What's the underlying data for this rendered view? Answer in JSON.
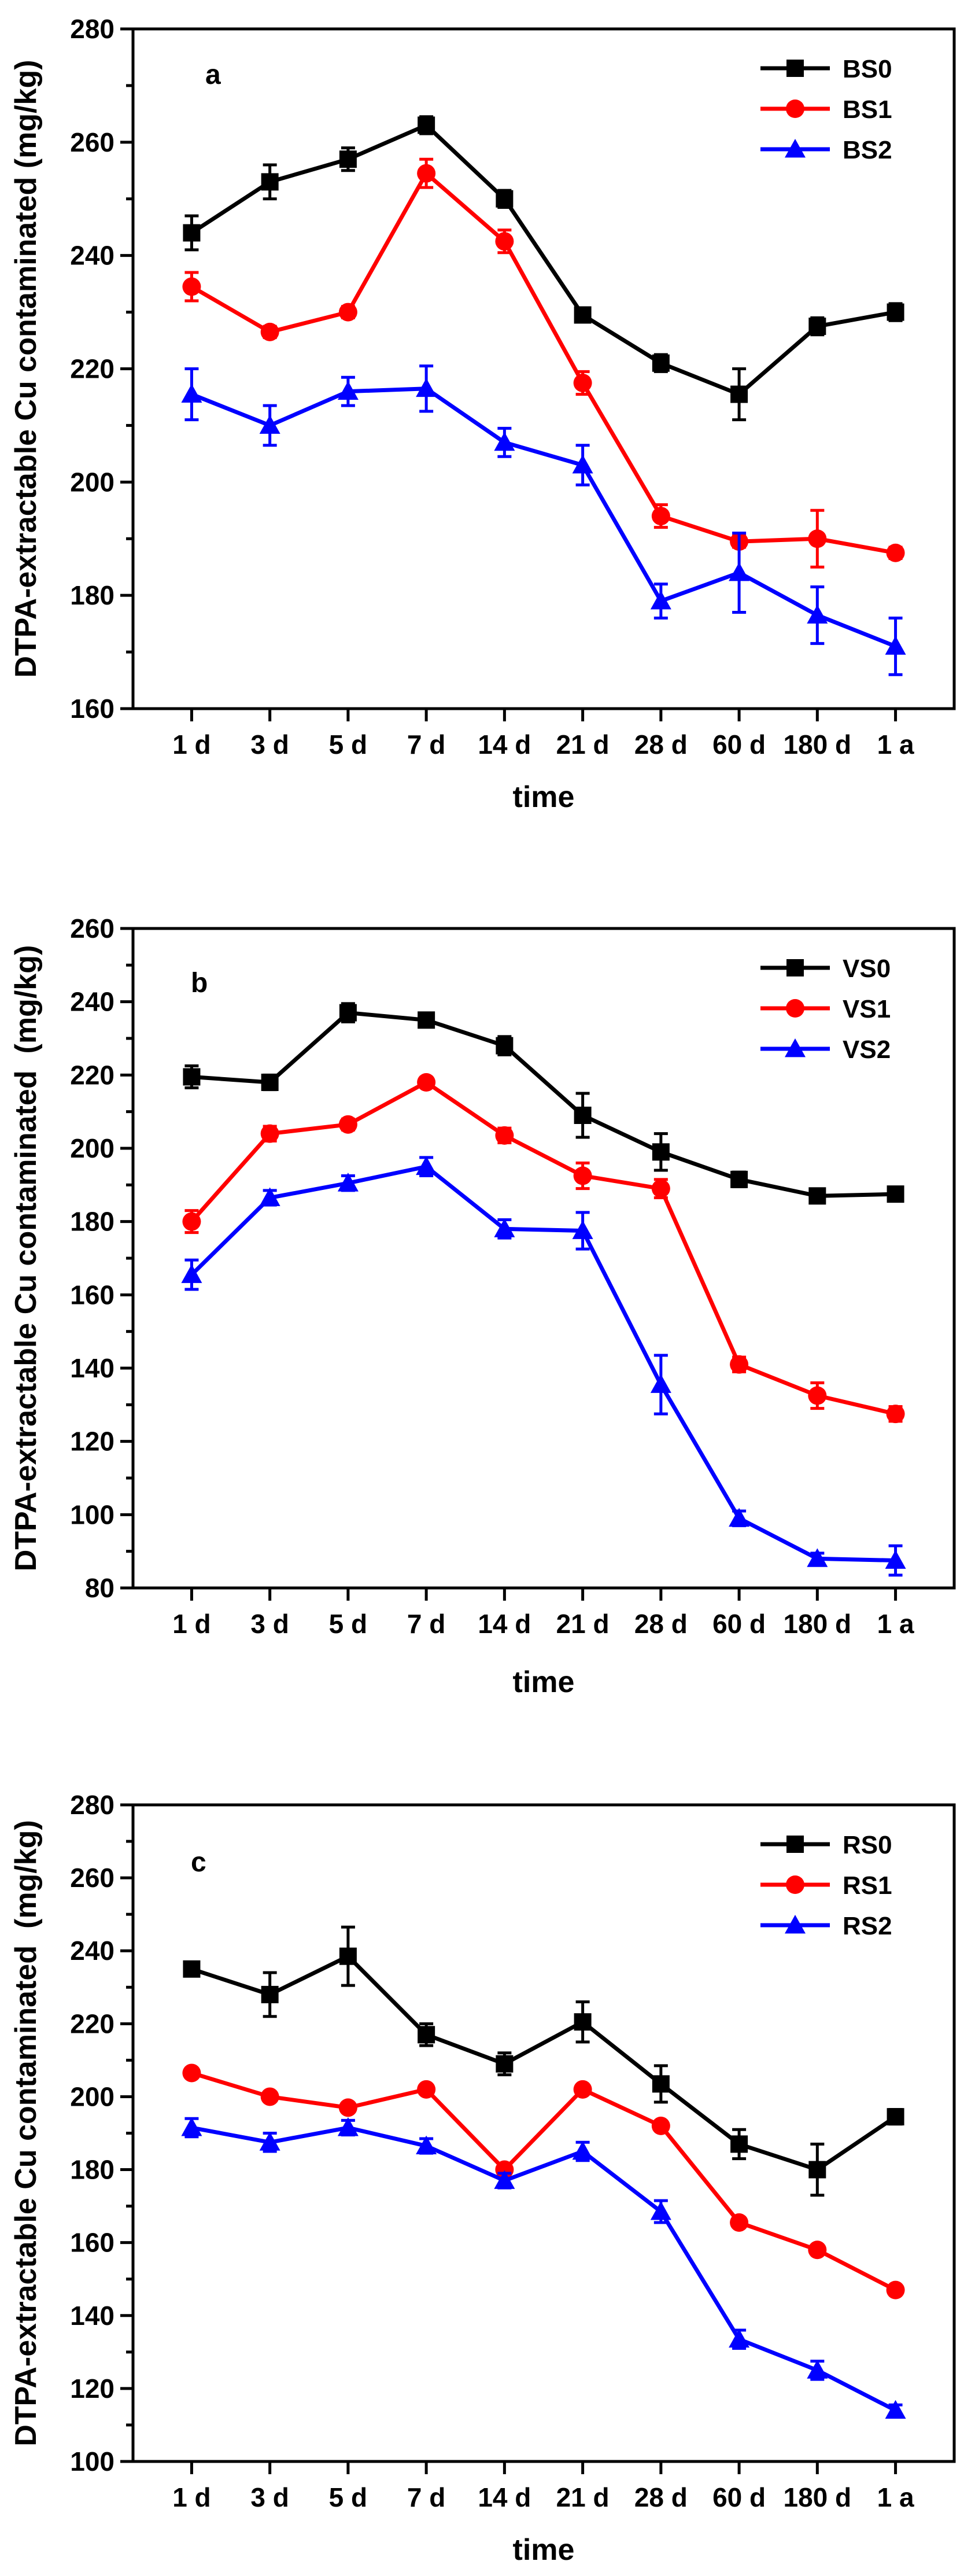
{
  "chart_data": [
    {
      "type": "line",
      "panel_label": "a",
      "categories": [
        "1 d",
        "3 d",
        "5 d",
        "7 d",
        "14 d",
        "21 d",
        "28 d",
        "60 d",
        "180 d",
        "1 a"
      ],
      "xlabel": "time",
      "ylabel": "DTPA-extractable Cu contaminated (mg/kg)",
      "ylim": [
        160,
        280
      ],
      "yticks": [
        160,
        180,
        200,
        220,
        240,
        260,
        280
      ],
      "legend_position": "top-right",
      "grid": false,
      "series": [
        {
          "name": "BS0",
          "color": "#000000",
          "marker": "square",
          "values": [
            244,
            253,
            257,
            263,
            250,
            229.5,
            221,
            215.5,
            227.5,
            230
          ],
          "errors": [
            3,
            3,
            2,
            1.5,
            1.5,
            1,
            1.5,
            4.5,
            1.5,
            1.5
          ]
        },
        {
          "name": "BS1",
          "color": "#ff0000",
          "marker": "circle",
          "values": [
            234.5,
            226.5,
            230,
            254.5,
            242.5,
            217.5,
            194,
            189.5,
            190,
            187.5
          ],
          "errors": [
            2.5,
            1,
            1,
            2.5,
            2,
            2,
            2,
            1,
            5,
            1
          ]
        },
        {
          "name": "BS2",
          "color": "#0000ff",
          "marker": "triangle",
          "values": [
            215.5,
            210,
            216,
            216.5,
            207,
            203,
            179,
            184,
            176.5,
            171
          ],
          "errors": [
            4.5,
            3.5,
            2.5,
            4,
            2.5,
            3.5,
            3,
            7,
            5,
            5
          ]
        }
      ]
    },
    {
      "type": "line",
      "panel_label": "b",
      "categories": [
        "1 d",
        "3 d",
        "5 d",
        "7 d",
        "14 d",
        "21 d",
        "28 d",
        "60 d",
        "180 d",
        "1 a"
      ],
      "xlabel": "time",
      "ylabel": "DTPA-extractable Cu contaminated  (mg/kg)",
      "ylim": [
        80,
        260
      ],
      "yticks": [
        80,
        100,
        120,
        140,
        160,
        180,
        200,
        220,
        240,
        260
      ],
      "legend_position": "top-right",
      "grid": false,
      "series": [
        {
          "name": "VS0",
          "color": "#000000",
          "marker": "square",
          "values": [
            219.5,
            218,
            237,
            235,
            228,
            209,
            199,
            191.5,
            187,
            187.5
          ],
          "errors": [
            3,
            2,
            2.5,
            1.5,
            2.5,
            6,
            5,
            2,
            1,
            1
          ]
        },
        {
          "name": "VS1",
          "color": "#ff0000",
          "marker": "circle",
          "values": [
            180,
            204,
            206.5,
            218,
            203.5,
            192.5,
            189,
            141,
            132.5,
            127.5
          ],
          "errors": [
            3,
            2,
            1.5,
            1,
            2,
            3.5,
            2.5,
            2,
            3.5,
            2
          ]
        },
        {
          "name": "VS2",
          "color": "#0000ff",
          "marker": "triangle",
          "values": [
            165.5,
            186.5,
            190.5,
            195,
            178,
            177.5,
            135.5,
            99,
            88,
            87.5
          ],
          "errors": [
            4,
            2,
            2,
            2.5,
            2.5,
            5,
            8,
            2,
            1.5,
            4
          ]
        }
      ]
    },
    {
      "type": "line",
      "panel_label": "c",
      "categories": [
        "1 d",
        "3 d",
        "5 d",
        "7 d",
        "14 d",
        "21 d",
        "28 d",
        "60 d",
        "180 d",
        "1 a"
      ],
      "xlabel": "time",
      "ylabel": "DTPA-extractable Cu contaminated  (mg/kg)",
      "ylim": [
        100,
        280
      ],
      "yticks": [
        100,
        120,
        140,
        160,
        180,
        200,
        220,
        240,
        260,
        280
      ],
      "legend_position": "top-right",
      "grid": false,
      "series": [
        {
          "name": "RS0",
          "color": "#000000",
          "marker": "square",
          "values": [
            235,
            228,
            238.5,
            217,
            209,
            220.5,
            203.5,
            187,
            180,
            194.5
          ],
          "errors": [
            1.5,
            6,
            8,
            3,
            3,
            5.5,
            5,
            4,
            7,
            2
          ]
        },
        {
          "name": "RS1",
          "color": "#ff0000",
          "marker": "circle",
          "values": [
            206.5,
            200,
            197,
            202,
            180,
            202,
            192,
            165.5,
            158,
            147
          ],
          "errors": [
            1,
            1,
            1,
            1,
            1.5,
            1,
            1,
            1,
            1,
            1
          ]
        },
        {
          "name": "RS2",
          "color": "#0000ff",
          "marker": "triangle",
          "values": [
            191.5,
            187.5,
            191.5,
            186.5,
            177,
            185,
            168.5,
            133.5,
            125,
            114
          ],
          "errors": [
            2.5,
            2.5,
            2,
            2,
            2,
            2.5,
            3,
            2.5,
            2.5,
            1.5
          ]
        }
      ]
    }
  ]
}
